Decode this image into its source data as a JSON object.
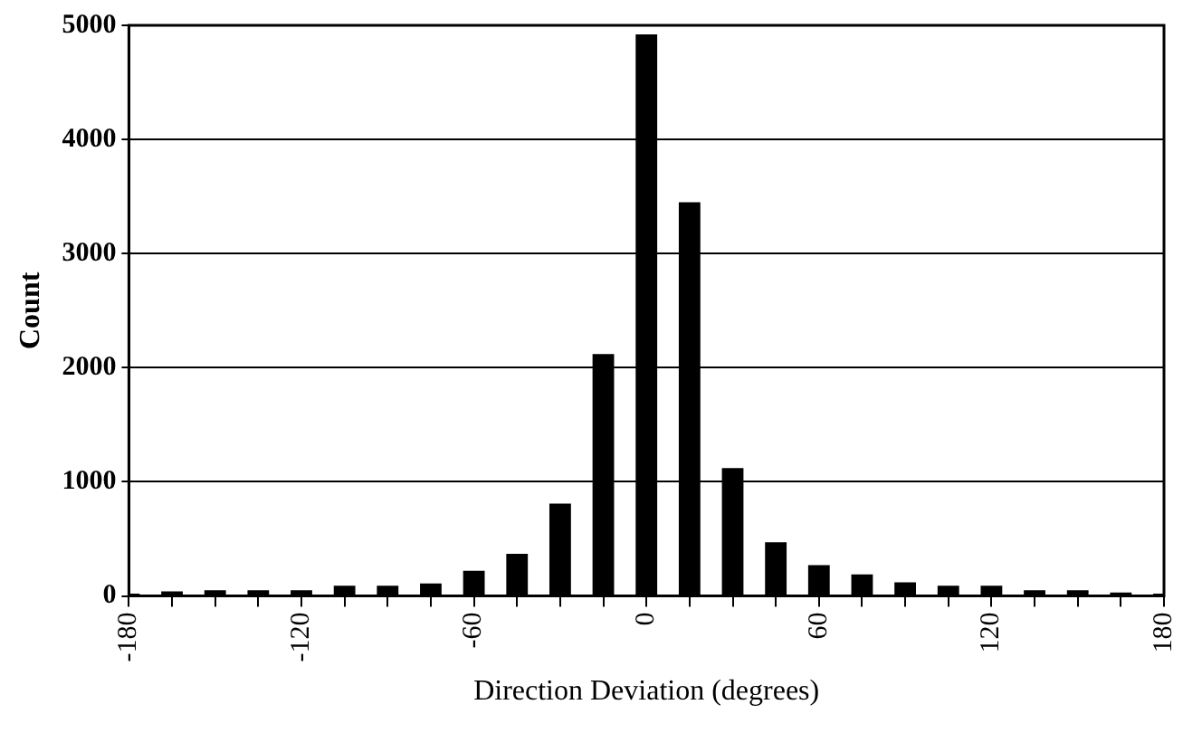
{
  "chart_data": {
    "type": "bar",
    "xlabel": "Direction Deviation (degrees)",
    "ylabel": "Count",
    "x": [
      -180,
      -165,
      -150,
      -135,
      -120,
      -105,
      -90,
      -75,
      -60,
      -45,
      -30,
      -15,
      0,
      15,
      30,
      45,
      60,
      75,
      90,
      105,
      120,
      135,
      150,
      165,
      180
    ],
    "values": [
      20,
      40,
      50,
      50,
      50,
      90,
      90,
      110,
      220,
      370,
      810,
      2120,
      4920,
      3450,
      1120,
      470,
      270,
      190,
      120,
      90,
      90,
      50,
      50,
      30,
      20
    ],
    "color": "#000000",
    "xlim": [
      -180,
      180
    ],
    "xticks": [
      -180,
      {
        "value": -165,
        "label": null
      },
      {
        "value": -150,
        "label": null
      },
      {
        "value": -135,
        "label": null
      },
      -120,
      {
        "value": -105,
        "label": null
      },
      {
        "value": -90,
        "label": null
      },
      {
        "value": -75,
        "label": null
      },
      -60,
      {
        "value": -45,
        "label": null
      },
      {
        "value": -30,
        "label": null
      },
      {
        "value": -15,
        "label": null
      },
      0,
      {
        "value": 15,
        "label": null
      },
      {
        "value": 30,
        "label": null
      },
      {
        "value": 45,
        "label": null
      },
      60,
      {
        "value": 75,
        "label": null
      },
      {
        "value": 90,
        "label": null
      },
      {
        "value": 105,
        "label": null
      },
      120,
      {
        "value": 135,
        "label": null
      },
      {
        "value": 150,
        "label": null
      },
      {
        "value": 165,
        "label": null
      },
      180
    ],
    "ylim": [
      0,
      5000
    ],
    "yticks": [
      0,
      1000,
      2000,
      3000,
      4000,
      5000
    ],
    "grid": "y"
  }
}
